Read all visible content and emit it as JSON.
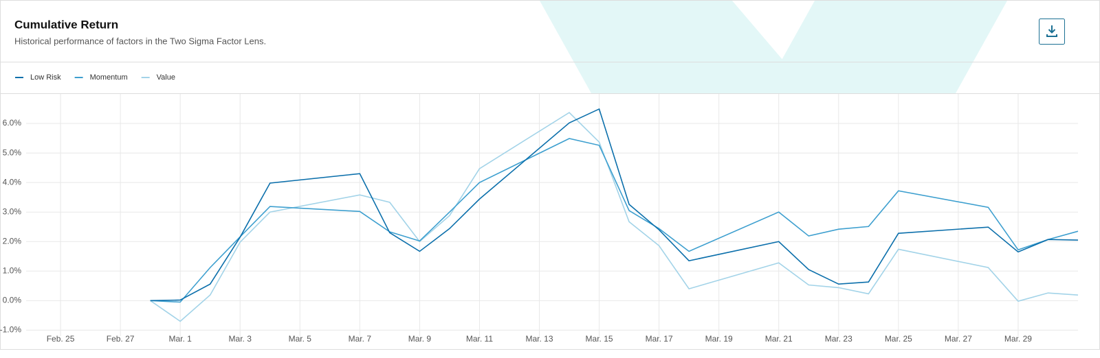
{
  "header": {
    "title": "Cumulative Return",
    "subtitle": "Historical performance of factors in the Two Sigma Factor Lens."
  },
  "chart_data": {
    "type": "line",
    "x": [
      "Feb. 28",
      "Mar. 1",
      "Mar. 2",
      "Mar. 3",
      "Mar. 4",
      "Mar. 7",
      "Mar. 8",
      "Mar. 9",
      "Mar. 10",
      "Mar. 11",
      "Mar. 14",
      "Mar. 15",
      "Mar. 16",
      "Mar. 17",
      "Mar. 18",
      "Mar. 21",
      "Mar. 22",
      "Mar. 23",
      "Mar. 24",
      "Mar. 25",
      "Mar. 28",
      "Mar. 29",
      "Mar. 30",
      "Mar. 31"
    ],
    "series": [
      {
        "name": "Low Risk",
        "color": "#0b6fab",
        "values": [
          0.0,
          0.02,
          0.56,
          2.15,
          3.98,
          4.3,
          2.3,
          1.67,
          2.44,
          3.44,
          6.02,
          6.49,
          3.26,
          2.4,
          1.35,
          2.0,
          1.05,
          0.56,
          0.63,
          2.28,
          2.49,
          1.65,
          2.07,
          2.05
        ]
      },
      {
        "name": "Momentum",
        "color": "#3d9fcf",
        "values": [
          0.0,
          -0.05,
          1.12,
          2.16,
          3.19,
          3.02,
          2.33,
          2.02,
          3.0,
          4.0,
          5.49,
          5.26,
          3.05,
          2.44,
          1.67,
          3.0,
          2.19,
          2.42,
          2.51,
          3.72,
          3.16,
          1.72,
          2.07,
          2.35
        ]
      },
      {
        "name": "Value",
        "color": "#a2d3e8",
        "values": [
          0.0,
          -0.7,
          0.19,
          1.98,
          3.0,
          3.58,
          3.33,
          2.0,
          2.88,
          4.47,
          6.37,
          5.37,
          2.67,
          1.86,
          0.4,
          1.28,
          0.53,
          0.44,
          0.23,
          1.74,
          1.12,
          -0.02,
          0.26,
          0.19
        ]
      }
    ],
    "xlim": [
      "Feb. 23",
      "Mar. 31"
    ],
    "xticks": [
      "Feb. 25",
      "Feb. 27",
      "Mar. 1",
      "Mar. 3",
      "Mar. 5",
      "Mar. 7",
      "Mar. 9",
      "Mar. 11",
      "Mar. 13",
      "Mar. 15",
      "Mar. 17",
      "Mar. 19",
      "Mar. 21",
      "Mar. 23",
      "Mar. 25",
      "Mar. 27",
      "Mar. 29"
    ],
    "ylim": [
      -1.2,
      7.0
    ],
    "yticks": [
      {
        "value": -1,
        "label": "-1.0%"
      },
      {
        "value": 0,
        "label": "0.0%"
      },
      {
        "value": 1,
        "label": "1.0%"
      },
      {
        "value": 2,
        "label": "2.0%"
      },
      {
        "value": 3,
        "label": "3.0%"
      },
      {
        "value": 4,
        "label": "4.0%"
      },
      {
        "value": 5,
        "label": "5.0%"
      },
      {
        "value": 6,
        "label": "6.0%"
      }
    ],
    "grid": true
  }
}
